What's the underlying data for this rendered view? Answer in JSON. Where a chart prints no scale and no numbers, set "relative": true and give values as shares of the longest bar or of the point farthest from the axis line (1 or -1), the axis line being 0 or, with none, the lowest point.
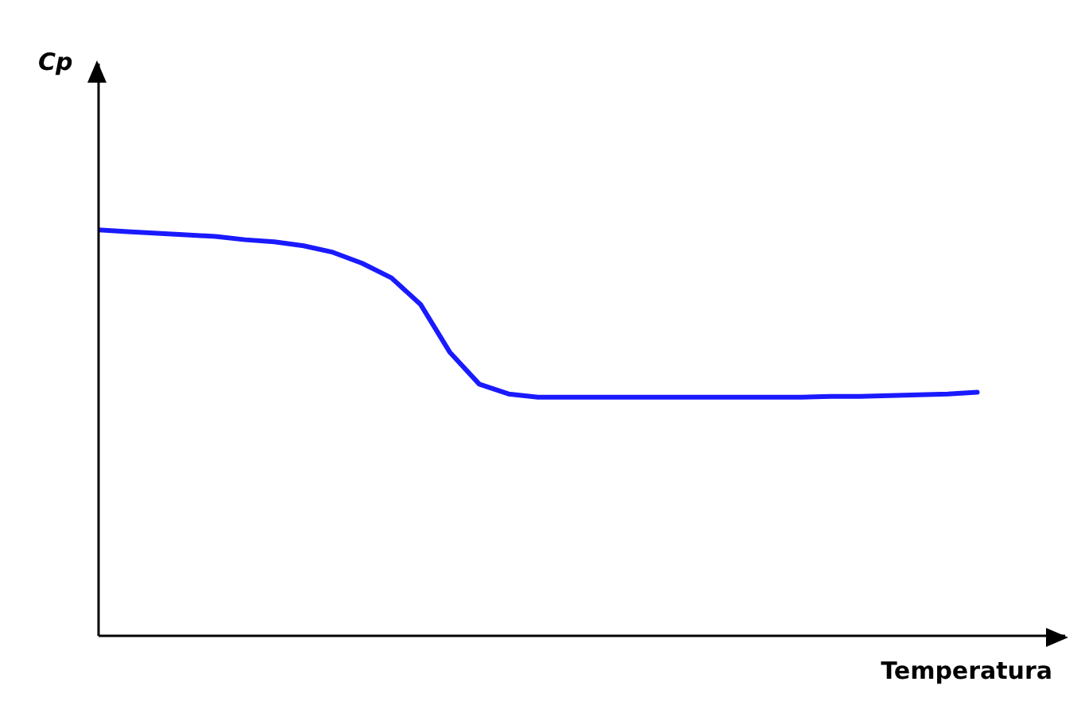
{
  "chart_data": {
    "type": "line",
    "xlabel": "Temperatura",
    "annotations": [
      "Cp"
    ],
    "relative": true,
    "marker": "none",
    "categories": [
      null,
      null,
      null,
      null,
      null,
      null,
      null,
      null,
      null,
      null,
      null,
      null,
      null,
      null,
      null,
      null,
      null,
      null,
      null,
      null,
      null,
      null,
      null,
      null,
      null,
      null,
      null,
      null,
      null,
      null,
      null,
      null,
      null,
      null
    ],
    "series": [
      {
        "color": "#1a1aff",
        "values": [
          1.0,
          0.996,
          0.992,
          0.988,
          0.984,
          0.976,
          0.971,
          0.961,
          0.945,
          0.918,
          0.882,
          0.816,
          0.698,
          0.62,
          0.596,
          0.588,
          0.588,
          0.588,
          0.588,
          0.588,
          0.588,
          0.588,
          0.588,
          0.588,
          0.588,
          0.59,
          0.59,
          0.592,
          0.594,
          0.596,
          0.6,
          null,
          null,
          null
        ]
      }
    ]
  }
}
